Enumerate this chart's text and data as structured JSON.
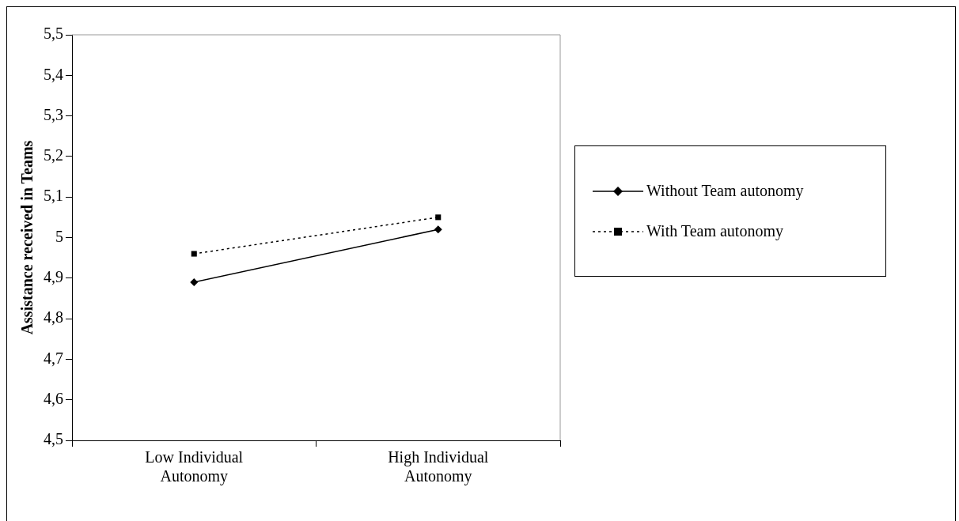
{
  "chart_data": {
    "type": "line",
    "ylabel": "Assistance received in Teams",
    "categories": [
      "Low Individual Autonomy",
      "High Individual Autonomy"
    ],
    "series": [
      {
        "name": "Without Team autonomy",
        "color": "#000000",
        "values": [
          4.89,
          5.02
        ],
        "marker": "diamond",
        "line_style": "solid"
      },
      {
        "name": "With Team autonomy",
        "color": "#000000",
        "values": [
          4.96,
          5.05
        ],
        "marker": "square",
        "line_style": "dotted"
      }
    ],
    "ylim": [
      4.5,
      5.5
    ],
    "yticks": [
      {
        "value": 4.5,
        "label": "4,5"
      },
      {
        "value": 4.6,
        "label": "4,6"
      },
      {
        "value": 4.7,
        "label": "4,7"
      },
      {
        "value": 4.8,
        "label": "4,8"
      },
      {
        "value": 4.9,
        "label": "4,9"
      },
      5,
      {
        "value": 5.1,
        "label": "5,1"
      },
      {
        "value": 5.2,
        "label": "5,2"
      },
      {
        "value": 5.3,
        "label": "5,3"
      },
      {
        "value": 5.4,
        "label": "5,4"
      },
      {
        "value": 5.5,
        "label": "5,5"
      }
    ],
    "grid": false,
    "legend": "right"
  }
}
